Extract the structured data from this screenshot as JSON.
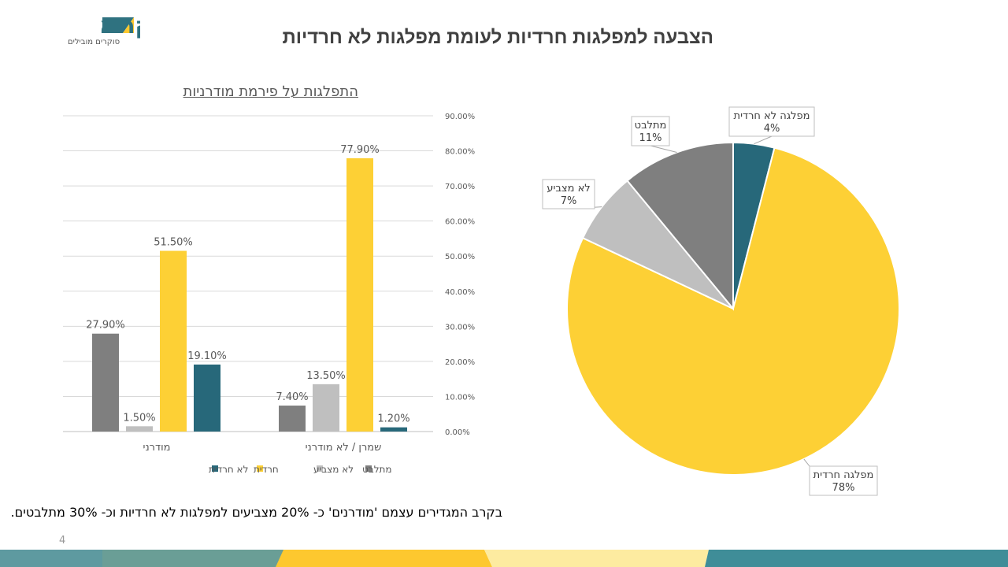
{
  "header": {
    "title": "הצבעה למפלגות חרדיות לעומת מפלגות לא חרדיות",
    "logo_text": "אסקריא",
    "logo_tagline": "סוקרים מובילים"
  },
  "footnote": "בקרב המגדירים עצמם 'מודרנים' כ- 20% מצביעים למפלגות לא חרדיות וכ- 30% מתלבטים.",
  "page_number": "4",
  "colors": {
    "teal": "#27687A",
    "yellow": "#FDD035",
    "lightgray": "#BFBFBF",
    "gray": "#7F7F7F"
  },
  "chart_data": [
    {
      "type": "bar",
      "title": "התפלגות על פירמת מודרניות",
      "categories": [
        "מודרני",
        "שמרן / לא מודרני"
      ],
      "series": [
        {
          "name": "מתלבט",
          "color": "#7F7F7F",
          "values": [
            27.9,
            7.4
          ],
          "labels": [
            "27.90%",
            "7.40%"
          ]
        },
        {
          "name": "לא מצביע",
          "color": "#BFBFBF",
          "values": [
            1.5,
            13.5
          ],
          "labels": [
            "1.50%",
            "13.50%"
          ]
        },
        {
          "name": "חרדית",
          "color": "#FDD035",
          "values": [
            51.5,
            77.9
          ],
          "labels": [
            "51.50%",
            "77.90%"
          ]
        },
        {
          "name": "לא חרדית",
          "color": "#27687A",
          "values": [
            19.1,
            1.2
          ],
          "labels": [
            "19.10%",
            "1.20%"
          ]
        }
      ],
      "ylim": [
        0,
        90
      ],
      "yticks": [
        "0.00%",
        "10.00%",
        "20.00%",
        "30.00%",
        "40.00%",
        "50.00%",
        "60.00%",
        "70.00%",
        "80.00%",
        "90.00%"
      ],
      "grid": true,
      "legend": "bottom",
      "yaxis_side": "right"
    },
    {
      "type": "pie",
      "slices": [
        {
          "label": "מפלגה לא חרדית",
          "value": 4,
          "text": "4%",
          "color": "#27687A"
        },
        {
          "label": "מפלגה חרדית",
          "value": 78,
          "text": "78%",
          "color": "#FDD035"
        },
        {
          "label": "לא מצביע",
          "value": 7,
          "text": "7%",
          "color": "#BFBFBF"
        },
        {
          "label": "מתלבט",
          "value": 11,
          "text": "11%",
          "color": "#7F7F7F"
        }
      ]
    }
  ]
}
